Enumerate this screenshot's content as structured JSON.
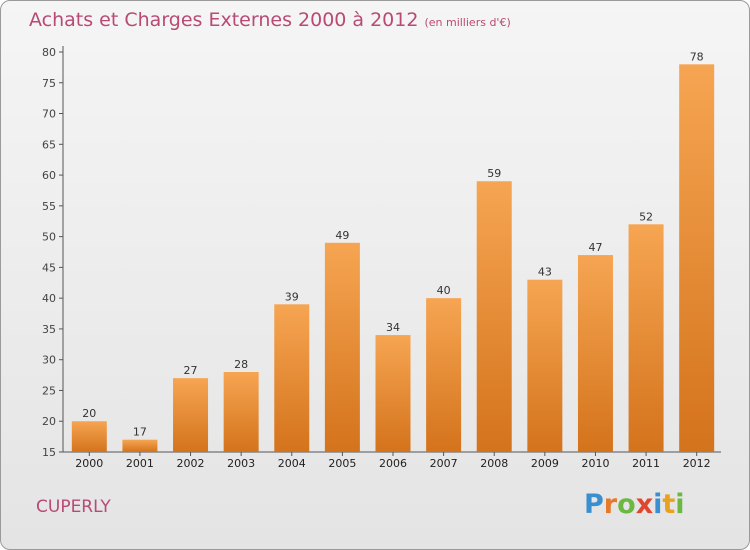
{
  "header": {
    "title": "Achats et Charges Externes 2000 à 2012",
    "unit": "(en milliers d'€)"
  },
  "footer": {
    "commune": "CUPERLY"
  },
  "logo": {
    "letters": [
      "P",
      "r",
      "o",
      "x",
      "i",
      "t",
      "i"
    ],
    "colors": [
      "#3a8fd0",
      "#e8782a",
      "#6cb843",
      "#e0452d",
      "#3a8fd0",
      "#e8a21f",
      "#6cb843"
    ]
  },
  "colors": {
    "bar_light": "#f6a552",
    "bar_dark": "#d4731c",
    "title": "#b84a73"
  },
  "chart_data": {
    "type": "bar",
    "title": "Achats et Charges Externes 2000 à 2012",
    "subtitle": "(en milliers d'€)",
    "categories": [
      "2000",
      "2001",
      "2002",
      "2003",
      "2004",
      "2005",
      "2006",
      "2007",
      "2008",
      "2009",
      "2010",
      "2011",
      "2012"
    ],
    "values": [
      20,
      17,
      27,
      28,
      39,
      49,
      34,
      40,
      59,
      43,
      47,
      52,
      78
    ],
    "ylim": [
      15,
      80
    ],
    "yticks": [
      15,
      20,
      25,
      30,
      35,
      40,
      45,
      50,
      55,
      60,
      65,
      70,
      75,
      80
    ],
    "grid": false,
    "legend": "none"
  }
}
